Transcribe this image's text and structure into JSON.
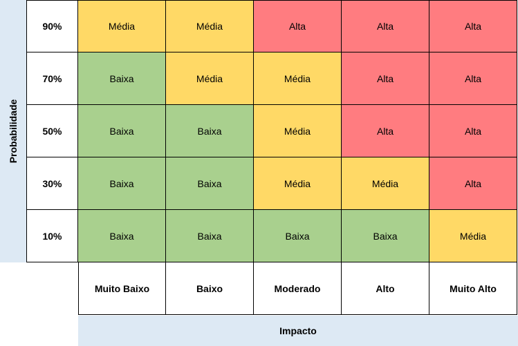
{
  "y_axis_label": "Probabilidade",
  "x_axis_label": "Impacto",
  "probabilities": [
    "90%",
    "70%",
    "50%",
    "30%",
    "10%"
  ],
  "impacts": [
    "Muito Baixo",
    "Baixo",
    "Moderado",
    "Alto",
    "Muito Alto"
  ],
  "matrix": [
    [
      "Média",
      "Média",
      "Alta",
      "Alta",
      "Alta"
    ],
    [
      "Baixa",
      "Média",
      "Média",
      "Alta",
      "Alta"
    ],
    [
      "Baixa",
      "Baixa",
      "Média",
      "Alta",
      "Alta"
    ],
    [
      "Baixa",
      "Baixa",
      "Média",
      "Média",
      "Alta"
    ],
    [
      "Baixa",
      "Baixa",
      "Baixa",
      "Baixa",
      "Média"
    ]
  ],
  "level_colors": {
    "Baixa": "#a9d08e",
    "Média": "#ffd966",
    "Alta": "#ff7c80"
  }
}
